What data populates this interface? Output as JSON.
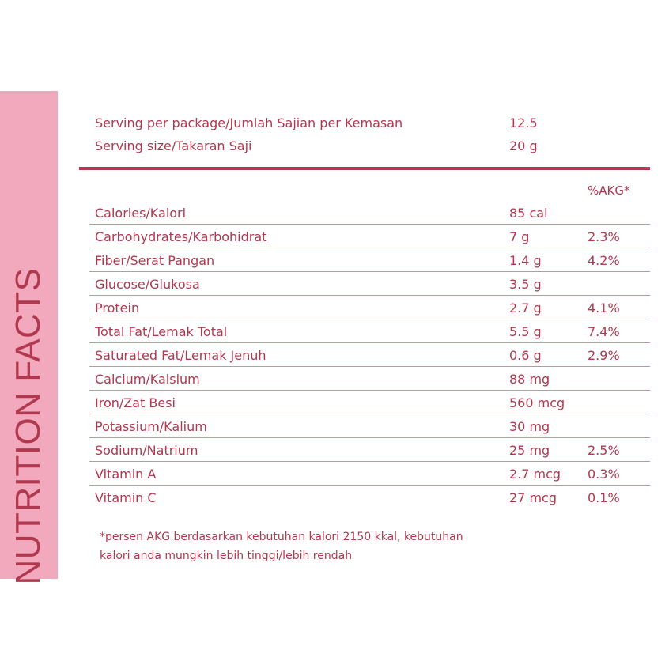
{
  "side_title": "NUTRITION FACTS",
  "serving": [
    {
      "label": "Serving per package/Jumlah Sajian per Kemasan",
      "value": "12.5"
    },
    {
      "label": "Serving size/Takaran Saji",
      "value": "20 g"
    }
  ],
  "akg_header": "%AKG*",
  "nutrients": [
    {
      "name": "Calories/Kalori",
      "amount": "85 cal",
      "akg": ""
    },
    {
      "name": "Carbohydrates/Karbohidrat",
      "amount": "7 g",
      "akg": "2.3%"
    },
    {
      "name": "Fiber/Serat Pangan",
      "amount": "1.4 g",
      "akg": "4.2%"
    },
    {
      "name": "Glucose/Glukosa",
      "amount": "3.5 g",
      "akg": ""
    },
    {
      "name": "Protein",
      "amount": "2.7 g",
      "akg": "4.1%"
    },
    {
      "name": "Total Fat/Lemak Total",
      "amount": "5.5 g",
      "akg": "7.4%"
    },
    {
      "name": "Saturated Fat/Lemak Jenuh",
      "amount": "0.6 g",
      "akg": "2.9%"
    },
    {
      "name": "Calcium/Kalsium",
      "amount": "88 mg",
      "akg": ""
    },
    {
      "name": "Iron/Zat Besi",
      "amount": "560 mcg",
      "akg": ""
    },
    {
      "name": "Potassium/Kalium",
      "amount": "30 mg",
      "akg": ""
    },
    {
      "name": "Sodium/Natrium",
      "amount": "25 mg",
      "akg": "2.5%"
    },
    {
      "name": "Vitamin A",
      "amount": "2.7 mcg",
      "akg": "0.3%"
    },
    {
      "name": "Vitamin C",
      "amount": "27 mcg",
      "akg": "0.1%"
    }
  ],
  "footnote": {
    "line1": "*persen AKG berdasarkan kebutuhan kalori 2150 kkal, kebutuhan",
    "line2": "kalori anda mungkin lebih tinggi/lebih rendah"
  },
  "colors": {
    "accent": "#b0384f",
    "band": "#f2a9bd",
    "row_line": "#d98a9c"
  }
}
